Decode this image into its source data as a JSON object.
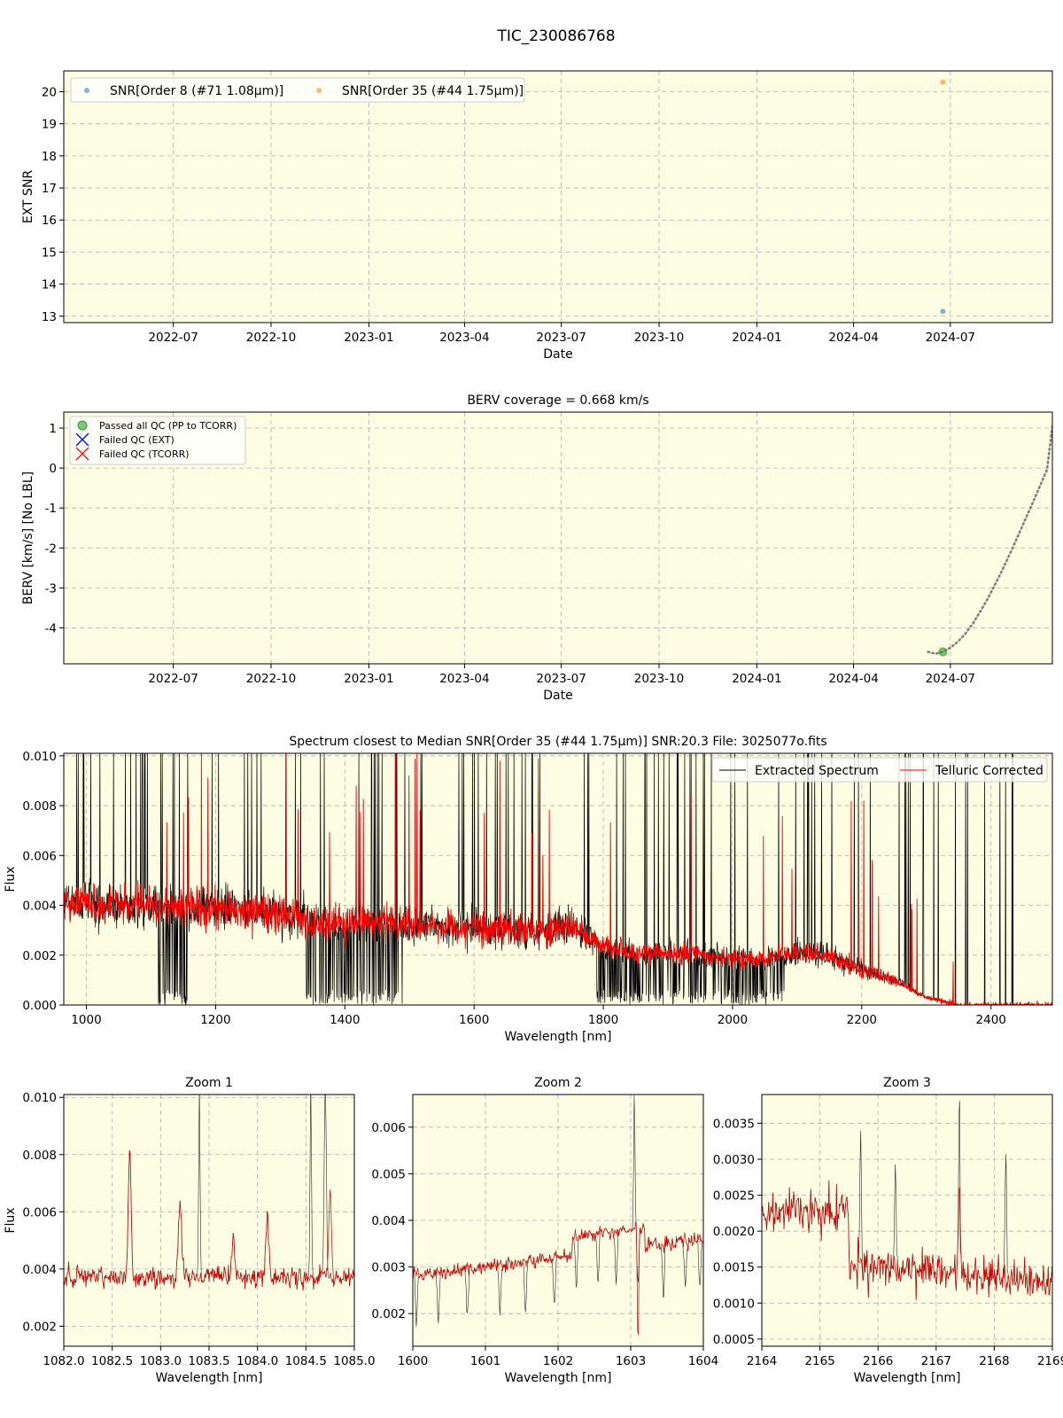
{
  "figure": {
    "title": "TIC_230086768"
  },
  "chart_data": [
    {
      "id": "snr",
      "type": "scatter",
      "title": "",
      "xlabel": "Date",
      "ylabel": "EXT SNR",
      "xlim": [
        "2022-03-20",
        "2024-10-05"
      ],
      "ylim": [
        12.8,
        20.65
      ],
      "xticks": [
        "2022-07",
        "2022-10",
        "2023-01",
        "2023-04",
        "2023-07",
        "2023-10",
        "2024-01",
        "2024-04",
        "2024-07"
      ],
      "yticks": [
        13,
        14,
        15,
        16,
        17,
        18,
        19,
        20
      ],
      "grid": true,
      "legend": "top-left",
      "series": [
        {
          "name": "SNR[Order 8 (#71 1.08μm)]",
          "color": "#1f77b4",
          "points": [
            {
              "x": "2024-06-24",
              "y": 13.15
            }
          ]
        },
        {
          "name": "SNR[Order 35 (#44 1.75μm)]",
          "color": "#ff7f0e",
          "points": [
            {
              "x": "2024-06-24",
              "y": 20.3
            }
          ]
        }
      ]
    },
    {
      "id": "berv",
      "type": "scatter",
      "title": "BERV coverage = 0.668 km/s",
      "xlabel": "Date",
      "ylabel": "BERV [km/s]  [No LBL]",
      "xlim": [
        "2022-03-20",
        "2024-10-05"
      ],
      "ylim": [
        -4.9,
        1.4
      ],
      "xticks": [
        "2022-07",
        "2022-10",
        "2023-01",
        "2023-04",
        "2023-07",
        "2023-10",
        "2024-01",
        "2024-04",
        "2024-07"
      ],
      "yticks": [
        1,
        0,
        -1,
        -2,
        -3,
        -4
      ],
      "grid": true,
      "legend": "top-left",
      "legend_entries": [
        {
          "label": "Passed all QC (PP to TCORR)",
          "marker": "circle",
          "color": "#2ca02c"
        },
        {
          "label": "Failed QC (EXT)",
          "marker": "x",
          "color": "#0000ff"
        },
        {
          "label": "Failed QC (TCORR)",
          "marker": "x",
          "color": "#ff0000"
        }
      ],
      "passed_points": [
        {
          "x": "2024-06-24",
          "y": -4.6
        }
      ],
      "berv_curve": {
        "color": "#808080",
        "style": "dotted",
        "x": [
          "2024-06-10",
          "2024-06-17",
          "2024-06-24",
          "2024-07-01",
          "2024-07-08",
          "2024-07-15",
          "2024-07-22",
          "2024-07-29",
          "2024-08-05",
          "2024-08-12",
          "2024-08-19",
          "2024-08-26",
          "2024-09-02",
          "2024-09-09",
          "2024-09-16",
          "2024-09-23",
          "2024-09-30",
          "2024-10-05"
        ],
        "y": [
          -4.6,
          -4.65,
          -4.6,
          -4.5,
          -4.35,
          -4.15,
          -3.9,
          -3.6,
          -3.28,
          -2.92,
          -2.55,
          -2.15,
          -1.74,
          -1.32,
          -0.9,
          -0.47,
          -0.04,
          1.05
        ]
      }
    },
    {
      "id": "spectrum",
      "type": "line",
      "title": "Spectrum closest to Median SNR[Order 35 (#44 1.75μm)]     SNR:20.3     File: 3025077o.fits",
      "xlabel": "Wavelength [nm]",
      "ylabel": "Flux",
      "xlim": [
        965,
        2495
      ],
      "ylim": [
        0,
        0.0101
      ],
      "xticks": [
        1000,
        1200,
        1400,
        1600,
        1800,
        2000,
        2200,
        2400
      ],
      "yticks": [
        "0.000",
        "0.002",
        "0.004",
        "0.006",
        "0.008",
        "0.010"
      ],
      "grid": true,
      "legend": "top-right",
      "series": [
        {
          "name": "Extracted Spectrum",
          "color": "#000000"
        },
        {
          "name": "Telluric Corrected",
          "color": "#ff0000"
        }
      ],
      "envelope_nm": [
        965,
        1050,
        1100,
        1150,
        1200,
        1250,
        1300,
        1350,
        1400,
        1450,
        1500,
        1550,
        1600,
        1650,
        1700,
        1750,
        1800,
        1850,
        1900,
        1950,
        2000,
        2050,
        2100,
        2150,
        2200,
        2250,
        2300,
        2350
      ],
      "envelope_flux": [
        0.0041,
        0.004,
        0.004,
        0.0039,
        0.0039,
        0.0038,
        0.0037,
        0.0034,
        0.0032,
        0.0033,
        0.0032,
        0.0031,
        0.0031,
        0.003,
        0.003,
        0.0031,
        0.0024,
        0.0021,
        0.0021,
        0.002,
        0.0019,
        0.0018,
        0.0021,
        0.002,
        0.0014,
        0.001,
        0.0003,
        0.0
      ]
    },
    {
      "id": "zoom1",
      "type": "line",
      "title": "Zoom 1",
      "xlabel": "Wavelength [nm]",
      "ylabel": "Flux",
      "xlim": [
        1082.0,
        1085.0
      ],
      "ylim": [
        0.0013,
        0.0101
      ],
      "xticks": [
        "1082.0",
        "1082.5",
        "1083.0",
        "1083.5",
        "1084.0",
        "1084.5",
        "1085.0"
      ],
      "yticks": [
        "0.002",
        "0.004",
        "0.006",
        "0.008",
        "0.010"
      ],
      "grid": true,
      "baseline": 0.0037,
      "noise": 0.0004,
      "features": [
        {
          "x": 1082.68,
          "y": 0.0083,
          "w": 0.02,
          "series": "both"
        },
        {
          "x": 1083.2,
          "y": 0.0064,
          "w": 0.025,
          "series": "both"
        },
        {
          "x": 1083.4,
          "y": 0.0105,
          "w": 0.01,
          "series": "extracted"
        },
        {
          "x": 1083.75,
          "y": 0.0051,
          "w": 0.02,
          "series": "both"
        },
        {
          "x": 1084.1,
          "y": 0.0059,
          "w": 0.02,
          "series": "both"
        },
        {
          "x": 1084.55,
          "y": 0.0105,
          "w": 0.01,
          "series": "extracted"
        },
        {
          "x": 1084.7,
          "y": 0.0105,
          "w": 0.015,
          "series": "extracted"
        },
        {
          "x": 1084.75,
          "y": 0.0067,
          "w": 0.02,
          "series": "corrected"
        }
      ]
    },
    {
      "id": "zoom2",
      "type": "line",
      "title": "Zoom 2",
      "xlabel": "Wavelength [nm]",
      "ylabel": "",
      "xlim": [
        1600,
        1604
      ],
      "ylim": [
        0.0013,
        0.0067
      ],
      "xticks": [
        1600,
        1601,
        1602,
        1603,
        1604
      ],
      "yticks": [
        "0.002",
        "0.003",
        "0.004",
        "0.005",
        "0.006"
      ],
      "grid": true,
      "baseline_start": 0.0028,
      "baseline_end": 0.0036,
      "noise": 0.00018,
      "absorptions": [
        1600.05,
        1600.35,
        1600.75,
        1601.2,
        1601.55,
        1601.95,
        1602.25,
        1602.55,
        1602.8,
        1603.1,
        1603.45,
        1603.75,
        1603.95
      ],
      "spikes": [
        {
          "x": 1603.05,
          "y": 0.0068,
          "series": "extracted"
        },
        {
          "x": 1603.1,
          "y": 0.0013,
          "series": "corrected"
        }
      ]
    },
    {
      "id": "zoom3",
      "type": "line",
      "title": "Zoom 3",
      "xlabel": "Wavelength [nm]",
      "ylabel": "",
      "xlim": [
        2164,
        2169
      ],
      "ylim": [
        0.0004,
        0.0039
      ],
      "xticks": [
        2164,
        2165,
        2166,
        2167,
        2168,
        2169
      ],
      "yticks": [
        "0.0005",
        "0.0010",
        "0.0015",
        "0.0020",
        "0.0025",
        "0.0030",
        "0.0035"
      ],
      "grid": true,
      "baseline_start": 0.0023,
      "baseline_end": 0.0013,
      "noise": 0.0003,
      "spikes": [
        {
          "x": 2165.7,
          "y": 0.0033,
          "series": "extracted"
        },
        {
          "x": 2166.3,
          "y": 0.003,
          "series": "extracted"
        },
        {
          "x": 2167.4,
          "y": 0.0039,
          "series": "extracted"
        },
        {
          "x": 2168.2,
          "y": 0.0033,
          "series": "extracted"
        }
      ]
    }
  ]
}
